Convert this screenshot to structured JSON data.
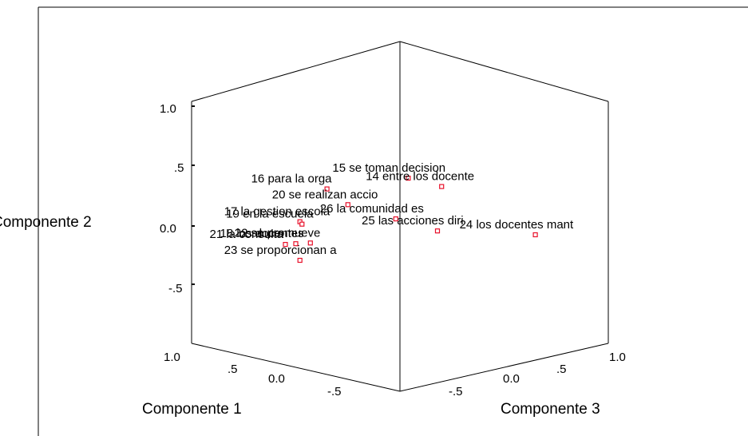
{
  "chart_data": {
    "type": "scatter",
    "title": "",
    "xlabel": "Componente 1",
    "ylabel": "Componente 2",
    "zlabel": "Componente 3",
    "y_ticks": [
      "1.0",
      ".5",
      "0.0",
      "-.5"
    ],
    "x_ticks": [
      "1.0",
      ".5",
      "0.0",
      "-.5"
    ],
    "z_ticks": [
      "-.5",
      "0.0",
      ".5",
      "1.0"
    ],
    "points": [
      {
        "label": "15 se toman decision",
        "c1": 0.38,
        "c2": 0.95,
        "c3": 0.42
      },
      {
        "label": "16 para la orga",
        "c1": 0.55,
        "c2": 0.88,
        "c3": 0.2
      },
      {
        "label": "14 entre los docente",
        "c1": 0.3,
        "c2": 0.88,
        "c3": 0.5
      },
      {
        "label": "20 se realizan accio",
        "c1": 0.5,
        "c2": 0.75,
        "c3": 0.25
      },
      {
        "label": "17 la gestion escola",
        "c1": 0.6,
        "c2": 0.62,
        "c3": 0.12
      },
      {
        "label": "19 en la escuela",
        "c1": 0.62,
        "c2": 0.58,
        "c3": 0.15
      },
      {
        "label": "26 la comunidad es",
        "c1": 0.4,
        "c2": 0.62,
        "c3": 0.38
      },
      {
        "label": "25 las acciones diri",
        "c1": 0.3,
        "c2": 0.52,
        "c3": 0.48
      },
      {
        "label": "21 la consulta",
        "c1": 0.65,
        "c2": 0.42,
        "c3": 0.1
      },
      {
        "label": "18 los docentes",
        "c1": 0.62,
        "c2": 0.43,
        "c3": 0.12
      },
      {
        "label": "22 se promueve",
        "c1": 0.58,
        "c2": 0.44,
        "c3": 0.15
      },
      {
        "label": "24 los docentes mant",
        "c1": 0.05,
        "c2": 0.5,
        "c3": 0.7
      },
      {
        "label": "23 se proporcionan a",
        "c1": 0.6,
        "c2": 0.3,
        "c3": 0.12
      }
    ],
    "marker_color": "#e8102a",
    "grid": false,
    "legend": "none"
  }
}
